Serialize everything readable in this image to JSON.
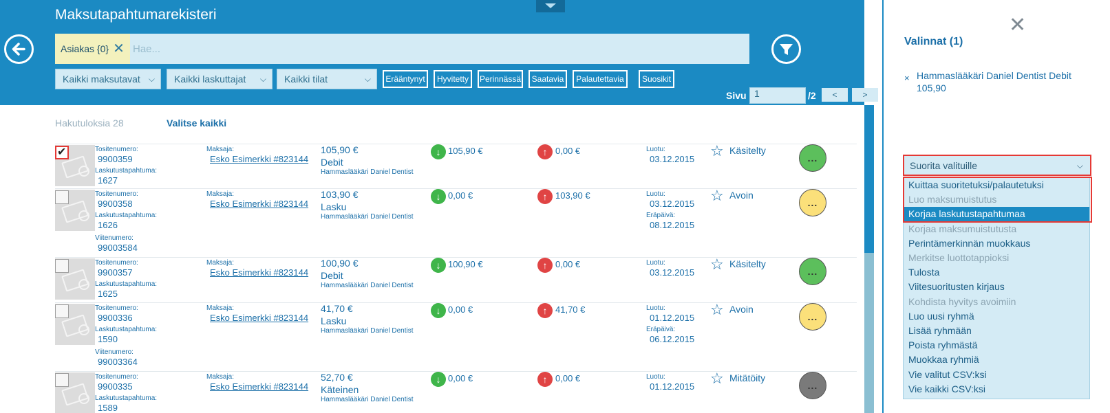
{
  "header": {
    "title": "Maksutapahtumarekisteri",
    "chip_label": "Asiakas {0}",
    "search_placeholder": "Hae...",
    "selects": [
      "Kaikki maksutavat",
      "Kaikki laskuttajat",
      "Kaikki tilat"
    ],
    "toggles": [
      "Erääntynyt",
      "Hyvitetty",
      "Perinnässä",
      "Saatavia",
      "Palautettavia",
      "Suosikit"
    ],
    "page_label": "Sivu",
    "page_value": "1",
    "page_total": "/2",
    "prev": "<",
    "next": ">"
  },
  "results": {
    "count_label": "Hakutuloksia 28",
    "select_all": "Valitse kaikki"
  },
  "labels": {
    "tosite": "Tositenumero:",
    "lasku": "Laskutustapahtuma:",
    "viite": "Viitenumero:",
    "maksaja": "Maksaja:",
    "luotu": "Luotu:",
    "erapaiva": "Eräpäivä:"
  },
  "rows": [
    {
      "checked": true,
      "tosite": "9900359",
      "lasku": "1627",
      "viite": "",
      "payer": "Esko Esimerkki #823144",
      "amount": "105,90 €",
      "type": "Debit",
      "biller": "Hammaslääkäri Daniel Dentist",
      "in": "105,90 €",
      "out": "0,00 €",
      "created": "03.12.2015",
      "due": "",
      "status": "Käsitelty",
      "status_color": "#5cbf5c"
    },
    {
      "checked": false,
      "tosite": "9900358",
      "lasku": "1626",
      "viite": "99003584",
      "payer": "Esko Esimerkki #823144",
      "amount": "103,90 €",
      "type": "Lasku",
      "biller": "Hammaslääkäri Daniel Dentist",
      "in": "0,00 €",
      "out": "103,90 €",
      "created": "03.12.2015",
      "due": "08.12.2015",
      "status": "Avoin",
      "status_color": "#fbe07a"
    },
    {
      "checked": false,
      "tosite": "9900357",
      "lasku": "1625",
      "viite": "",
      "payer": "Esko Esimerkki #823144",
      "amount": "100,90 €",
      "type": "Debit",
      "biller": "Hammaslääkäri Daniel Dentist",
      "in": "100,90 €",
      "out": "0,00 €",
      "created": "03.12.2015",
      "due": "",
      "status": "Käsitelty",
      "status_color": "#5cbf5c"
    },
    {
      "checked": false,
      "tosite": "9900336",
      "lasku": "1590",
      "viite": "99003364",
      "payer": "Esko Esimerkki #823144",
      "amount": "41,70 €",
      "type": "Lasku",
      "biller": "Hammaslääkäri Daniel Dentist",
      "in": "0,00 €",
      "out": "41,70 €",
      "created": "01.12.2015",
      "due": "06.12.2015",
      "status": "Avoin",
      "status_color": "#fbe07a"
    },
    {
      "checked": false,
      "tosite": "9900335",
      "lasku": "1589",
      "viite": "",
      "payer": "Esko Esimerkki #823144",
      "amount": "52,70 €",
      "type": "Käteinen",
      "biller": "Hammaslääkäri Daniel Dentist",
      "in": "0,00 €",
      "out": "0,00 €",
      "created": "01.12.2015",
      "due": "",
      "status": "Mitätöity",
      "status_color": "#7a7a7a"
    }
  ],
  "row_more": "...",
  "panel": {
    "selections_title": "Valinnat (1)",
    "selection_item_remove": "×",
    "selection_item": "Hammaslääkäri Daniel Dentist Debit 105,90",
    "action_select": "Suorita valituille",
    "options": [
      {
        "label": "Kuittaa suoritetuksi/palautetuksi",
        "state": "enabled"
      },
      {
        "label": "Luo maksumuistutus",
        "state": "disabled"
      },
      {
        "label": "Korjaa laskutustapahtumaa",
        "state": "active"
      },
      {
        "label": "Korjaa maksumuistutusta",
        "state": "disabled"
      },
      {
        "label": "Perintämerkinnän muokkaus",
        "state": "enabled"
      },
      {
        "label": "Merkitse luottotappioksi",
        "state": "disabled"
      },
      {
        "label": "Tulosta",
        "state": "enabled"
      },
      {
        "label": "Viitesuoritusten kirjaus",
        "state": "enabled"
      },
      {
        "label": "Kohdista hyvitys avoimiin",
        "state": "disabled"
      },
      {
        "label": "Luo uusi ryhmä",
        "state": "enabled"
      },
      {
        "label": "Lisää ryhmään",
        "state": "enabled"
      },
      {
        "label": "Poista ryhmästä",
        "state": "enabled"
      },
      {
        "label": "Muokkaa ryhmiä",
        "state": "enabled"
      },
      {
        "label": "Vie valitut CSV:ksi",
        "state": "enabled"
      },
      {
        "label": "Vie kaikki CSV:ksi",
        "state": "enabled"
      }
    ]
  }
}
